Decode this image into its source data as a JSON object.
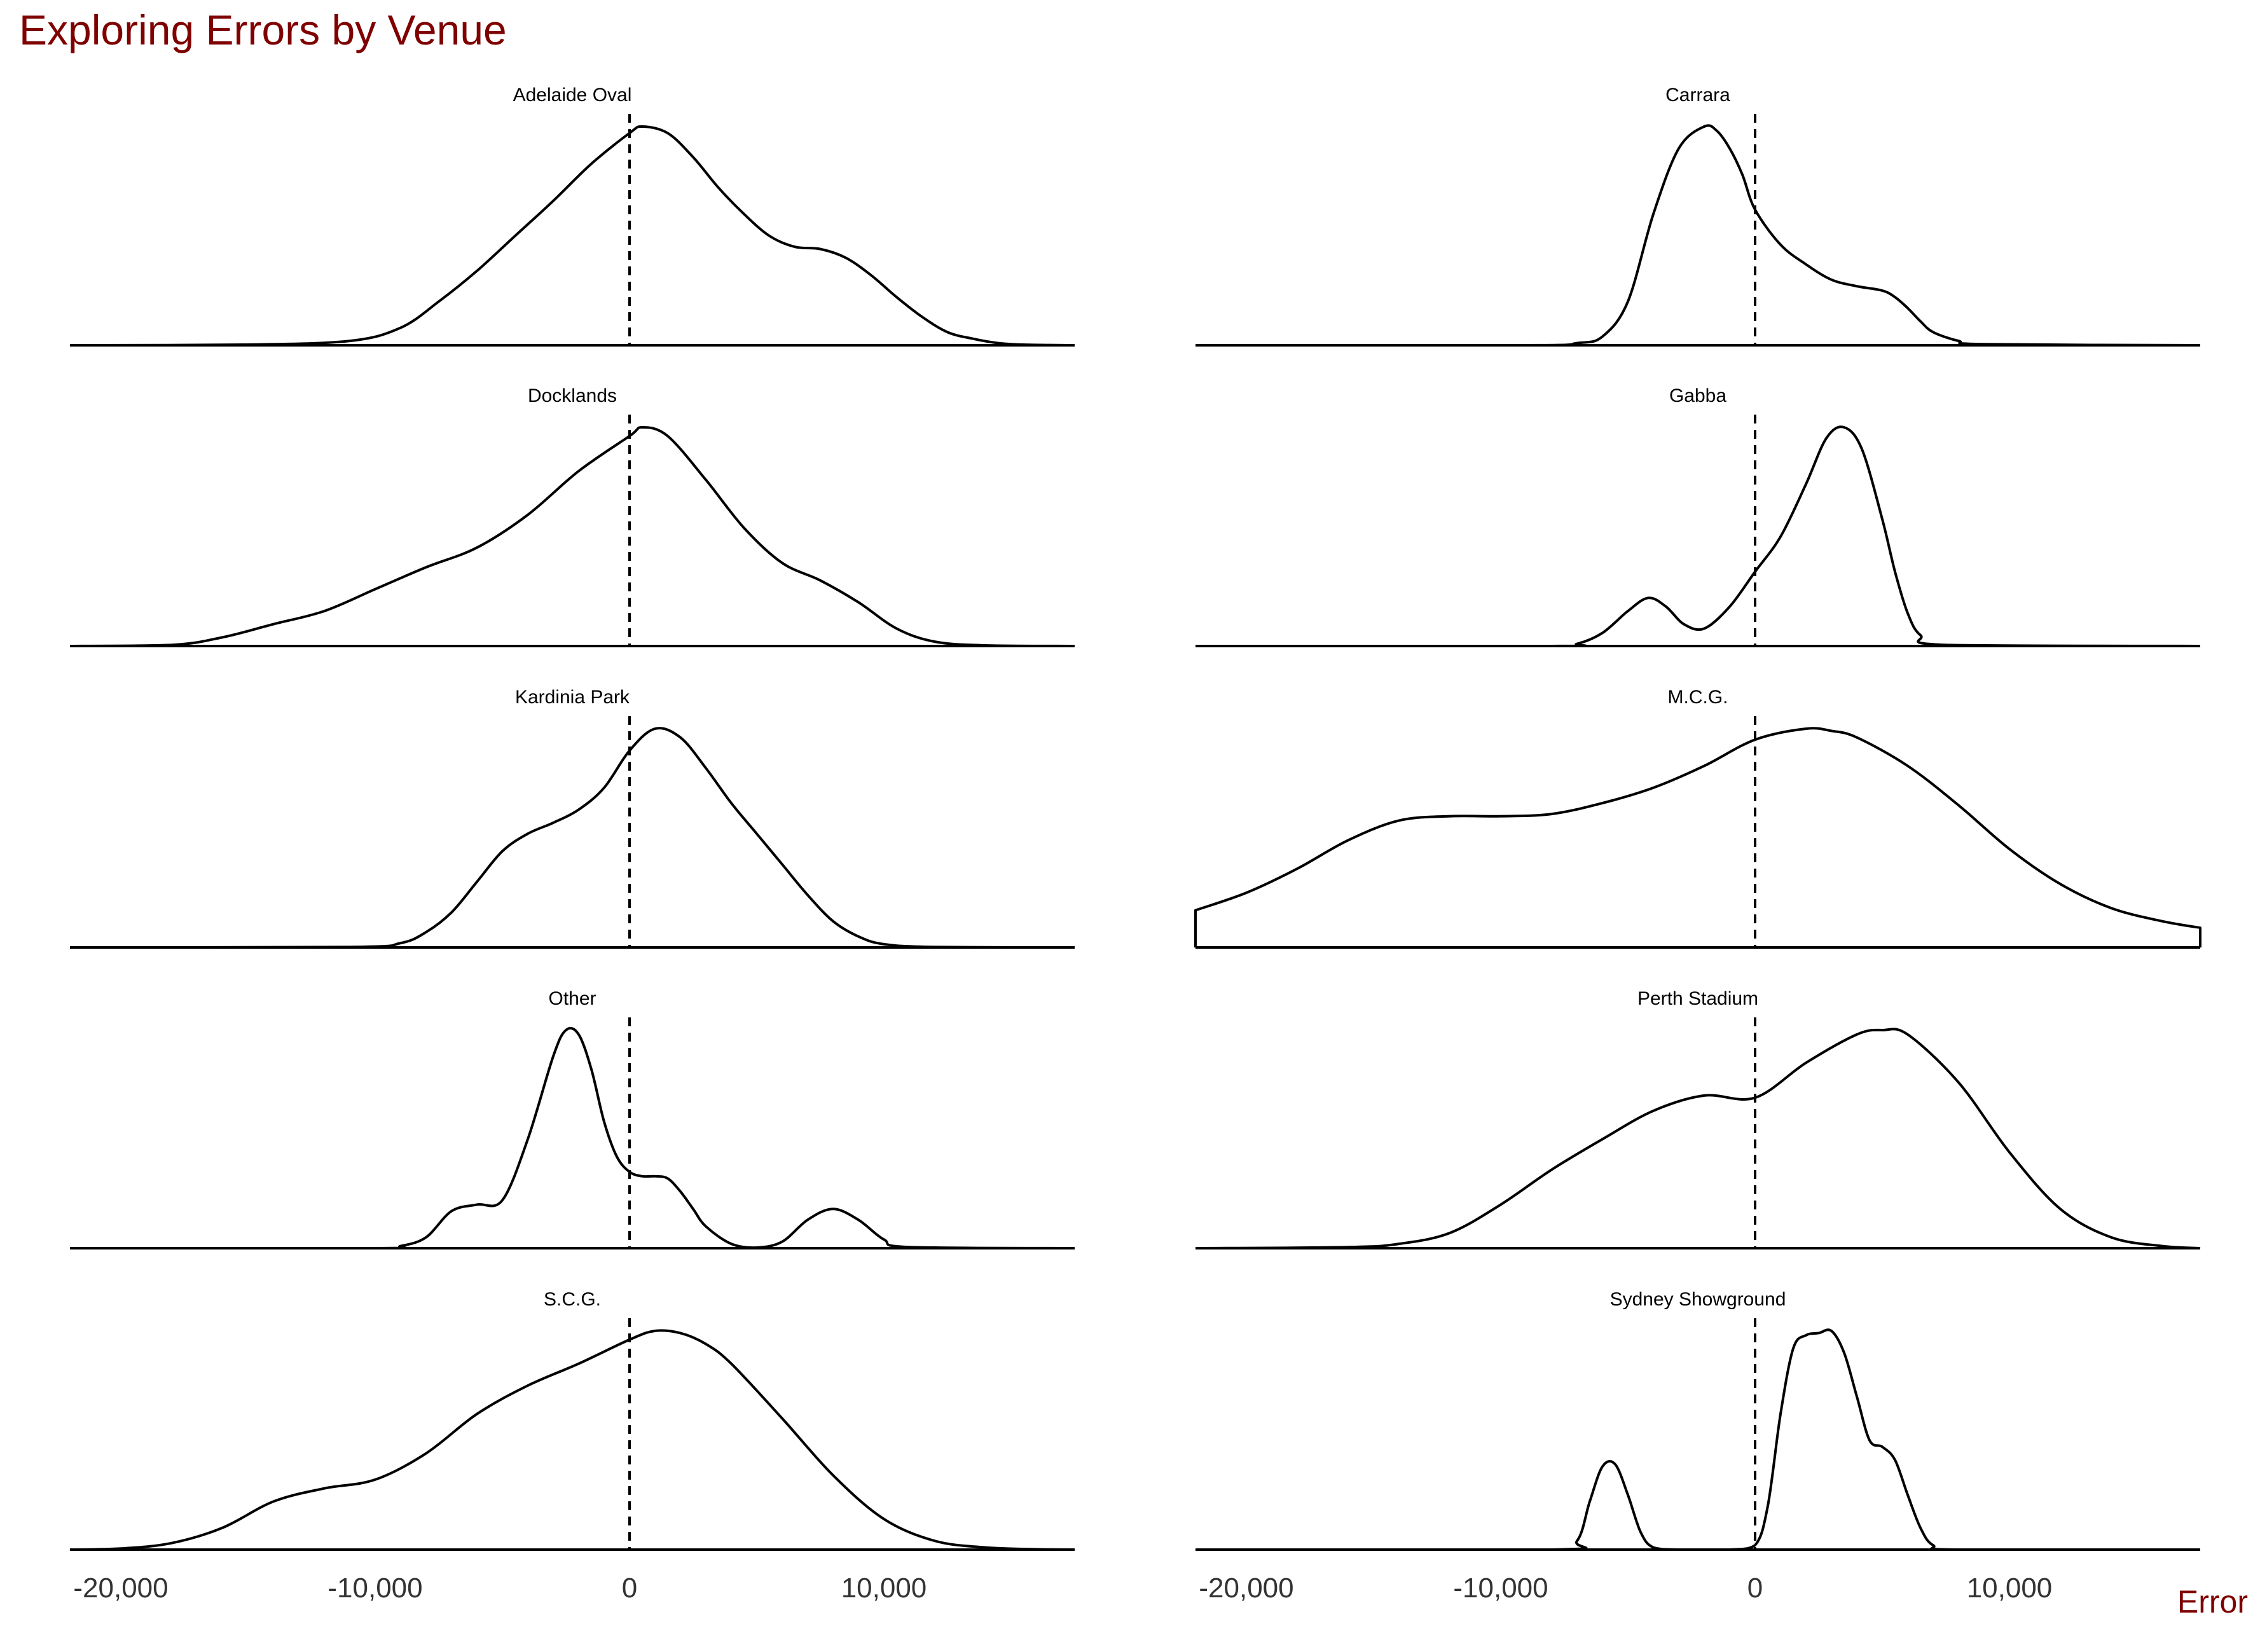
{
  "chart_data": {
    "type": "area",
    "title": "Exploring Errors by Venue",
    "xlabel": "Error",
    "ylabel": "",
    "xlim": [
      -22000,
      17500
    ],
    "x_ticks": [
      -20000,
      -10000,
      0,
      10000
    ],
    "x_tick_labels": [
      "-20,000",
      "-10,000",
      "0",
      "10,000"
    ],
    "reference_line": {
      "x": 0,
      "style": "dashed"
    },
    "grid": false,
    "panels": [
      {
        "name": "Adelaide Oval",
        "x": [
          -22000,
          -15000,
          -11000,
          -9000,
          -7500,
          -6000,
          -4500,
          -3000,
          -1500,
          0,
          500,
          1500,
          2500,
          3500,
          4500,
          5500,
          6500,
          7500,
          8500,
          9500,
          10500,
          11500,
          12500,
          13500,
          14500,
          15500,
          17500
        ],
        "density": [
          0,
          0.003,
          0.02,
          0.08,
          0.2,
          0.34,
          0.5,
          0.66,
          0.83,
          0.97,
          1.0,
          0.97,
          0.86,
          0.72,
          0.6,
          0.5,
          0.45,
          0.44,
          0.4,
          0.32,
          0.22,
          0.13,
          0.06,
          0.03,
          0.01,
          0.003,
          0
        ]
      },
      {
        "name": "Carrara",
        "x": [
          -22000,
          -9000,
          -7000,
          -6000,
          -5000,
          -4000,
          -3000,
          -2000,
          -1500,
          -1000,
          -500,
          0,
          1000,
          2000,
          3000,
          4000,
          5000,
          5500,
          6000,
          6500,
          7000,
          8000,
          9000,
          17500
        ],
        "density": [
          0,
          0,
          0.01,
          0.04,
          0.2,
          0.6,
          0.9,
          1.0,
          0.98,
          0.9,
          0.78,
          0.62,
          0.46,
          0.37,
          0.3,
          0.27,
          0.25,
          0.22,
          0.17,
          0.11,
          0.06,
          0.02,
          0.005,
          0
        ]
      },
      {
        "name": "Docklands",
        "x": [
          -22000,
          -18000,
          -16000,
          -14000,
          -12000,
          -10000,
          -8000,
          -6000,
          -4000,
          -2000,
          0,
          500,
          1500,
          3000,
          4500,
          6000,
          7500,
          9000,
          10500,
          12000,
          14000,
          17500
        ],
        "density": [
          0,
          0.005,
          0.04,
          0.1,
          0.16,
          0.26,
          0.36,
          0.45,
          0.6,
          0.8,
          0.96,
          1.0,
          0.96,
          0.76,
          0.54,
          0.38,
          0.3,
          0.2,
          0.08,
          0.02,
          0.003,
          0
        ]
      },
      {
        "name": "Gabba",
        "x": [
          -22000,
          -8000,
          -7000,
          -6000,
          -5000,
          -4200,
          -3500,
          -2800,
          -2000,
          -1000,
          0,
          1000,
          2000,
          2800,
          3500,
          4200,
          5000,
          5500,
          6000,
          6500,
          7500,
          17500
        ],
        "density": [
          0,
          0,
          0.01,
          0.06,
          0.16,
          0.22,
          0.18,
          0.1,
          0.08,
          0.18,
          0.34,
          0.5,
          0.74,
          0.95,
          1.0,
          0.9,
          0.58,
          0.34,
          0.15,
          0.05,
          0.005,
          0
        ]
      },
      {
        "name": "Kardinia Park",
        "x": [
          -22000,
          -11000,
          -9000,
          -8000,
          -7000,
          -6000,
          -5000,
          -4000,
          -3000,
          -2000,
          -1000,
          0,
          1000,
          2000,
          3000,
          4000,
          5000,
          6000,
          7000,
          8000,
          9000,
          10000,
          12000,
          17500
        ],
        "density": [
          0,
          0.002,
          0.02,
          0.07,
          0.16,
          0.3,
          0.44,
          0.52,
          0.57,
          0.63,
          0.73,
          0.9,
          1.0,
          0.96,
          0.82,
          0.66,
          0.52,
          0.38,
          0.24,
          0.12,
          0.05,
          0.015,
          0.002,
          0
        ]
      },
      {
        "name": "M.C.G.",
        "x": [
          -22000,
          -20000,
          -18000,
          -16000,
          -14000,
          -12000,
          -10000,
          -8000,
          -6000,
          -4000,
          -2000,
          0,
          2000,
          3000,
          4000,
          6000,
          8000,
          10000,
          12000,
          14000,
          16000,
          17500
        ],
        "density": [
          0.17,
          0.25,
          0.36,
          0.49,
          0.58,
          0.6,
          0.6,
          0.61,
          0.66,
          0.73,
          0.83,
          0.95,
          1.0,
          0.99,
          0.96,
          0.83,
          0.65,
          0.45,
          0.29,
          0.18,
          0.12,
          0.09
        ]
      },
      {
        "name": "Other",
        "x": [
          -22000,
          -10000,
          -9000,
          -8000,
          -7000,
          -6000,
          -5000,
          -4000,
          -3000,
          -2500,
          -2000,
          -1500,
          -1000,
          -500,
          0,
          500,
          1000,
          1500,
          2000,
          2500,
          3000,
          4000,
          5000,
          6000,
          7000,
          8000,
          9000,
          10000,
          11000,
          17500
        ],
        "density": [
          0,
          0,
          0.01,
          0.05,
          0.17,
          0.2,
          0.22,
          0.5,
          0.88,
          1.0,
          0.98,
          0.82,
          0.58,
          0.42,
          0.35,
          0.33,
          0.33,
          0.32,
          0.26,
          0.18,
          0.1,
          0.02,
          0.003,
          0.03,
          0.13,
          0.18,
          0.13,
          0.04,
          0.005,
          0
        ]
      },
      {
        "name": "Perth Stadium",
        "x": [
          -22000,
          -16000,
          -14000,
          -12000,
          -10000,
          -8000,
          -6000,
          -4000,
          -2000,
          0,
          2000,
          4000,
          5000,
          6000,
          8000,
          10000,
          12000,
          14000,
          16000,
          17500
        ],
        "density": [
          0,
          0.005,
          0.02,
          0.07,
          0.2,
          0.36,
          0.5,
          0.63,
          0.7,
          0.69,
          0.85,
          0.98,
          1.0,
          0.98,
          0.76,
          0.44,
          0.18,
          0.05,
          0.01,
          0
        ]
      },
      {
        "name": "S.C.G.",
        "x": [
          -22000,
          -20000,
          -18000,
          -16000,
          -14000,
          -12000,
          -10000,
          -8000,
          -6000,
          -4000,
          -2000,
          0,
          1000,
          2000,
          3000,
          4000,
          6000,
          8000,
          10000,
          12000,
          14000,
          16000,
          17500
        ],
        "density": [
          0,
          0.005,
          0.03,
          0.1,
          0.22,
          0.28,
          0.32,
          0.44,
          0.62,
          0.75,
          0.85,
          0.96,
          1.0,
          0.99,
          0.94,
          0.85,
          0.6,
          0.34,
          0.14,
          0.04,
          0.01,
          0.002,
          0
        ]
      },
      {
        "name": "Sydney Showground",
        "x": [
          -22000,
          -8000,
          -7000,
          -6500,
          -6000,
          -5500,
          -5000,
          -4500,
          -4000,
          -3000,
          -1000,
          0,
          500,
          1000,
          1500,
          2000,
          2500,
          3000,
          3500,
          4000,
          4500,
          5000,
          5500,
          6000,
          6500,
          7000,
          8000,
          17500
        ],
        "density": [
          0,
          0,
          0.04,
          0.22,
          0.38,
          0.39,
          0.25,
          0.08,
          0.01,
          0,
          0,
          0.02,
          0.2,
          0.62,
          0.92,
          0.98,
          0.99,
          1.0,
          0.9,
          0.7,
          0.5,
          0.47,
          0.41,
          0.25,
          0.1,
          0.02,
          0,
          0
        ]
      }
    ]
  }
}
